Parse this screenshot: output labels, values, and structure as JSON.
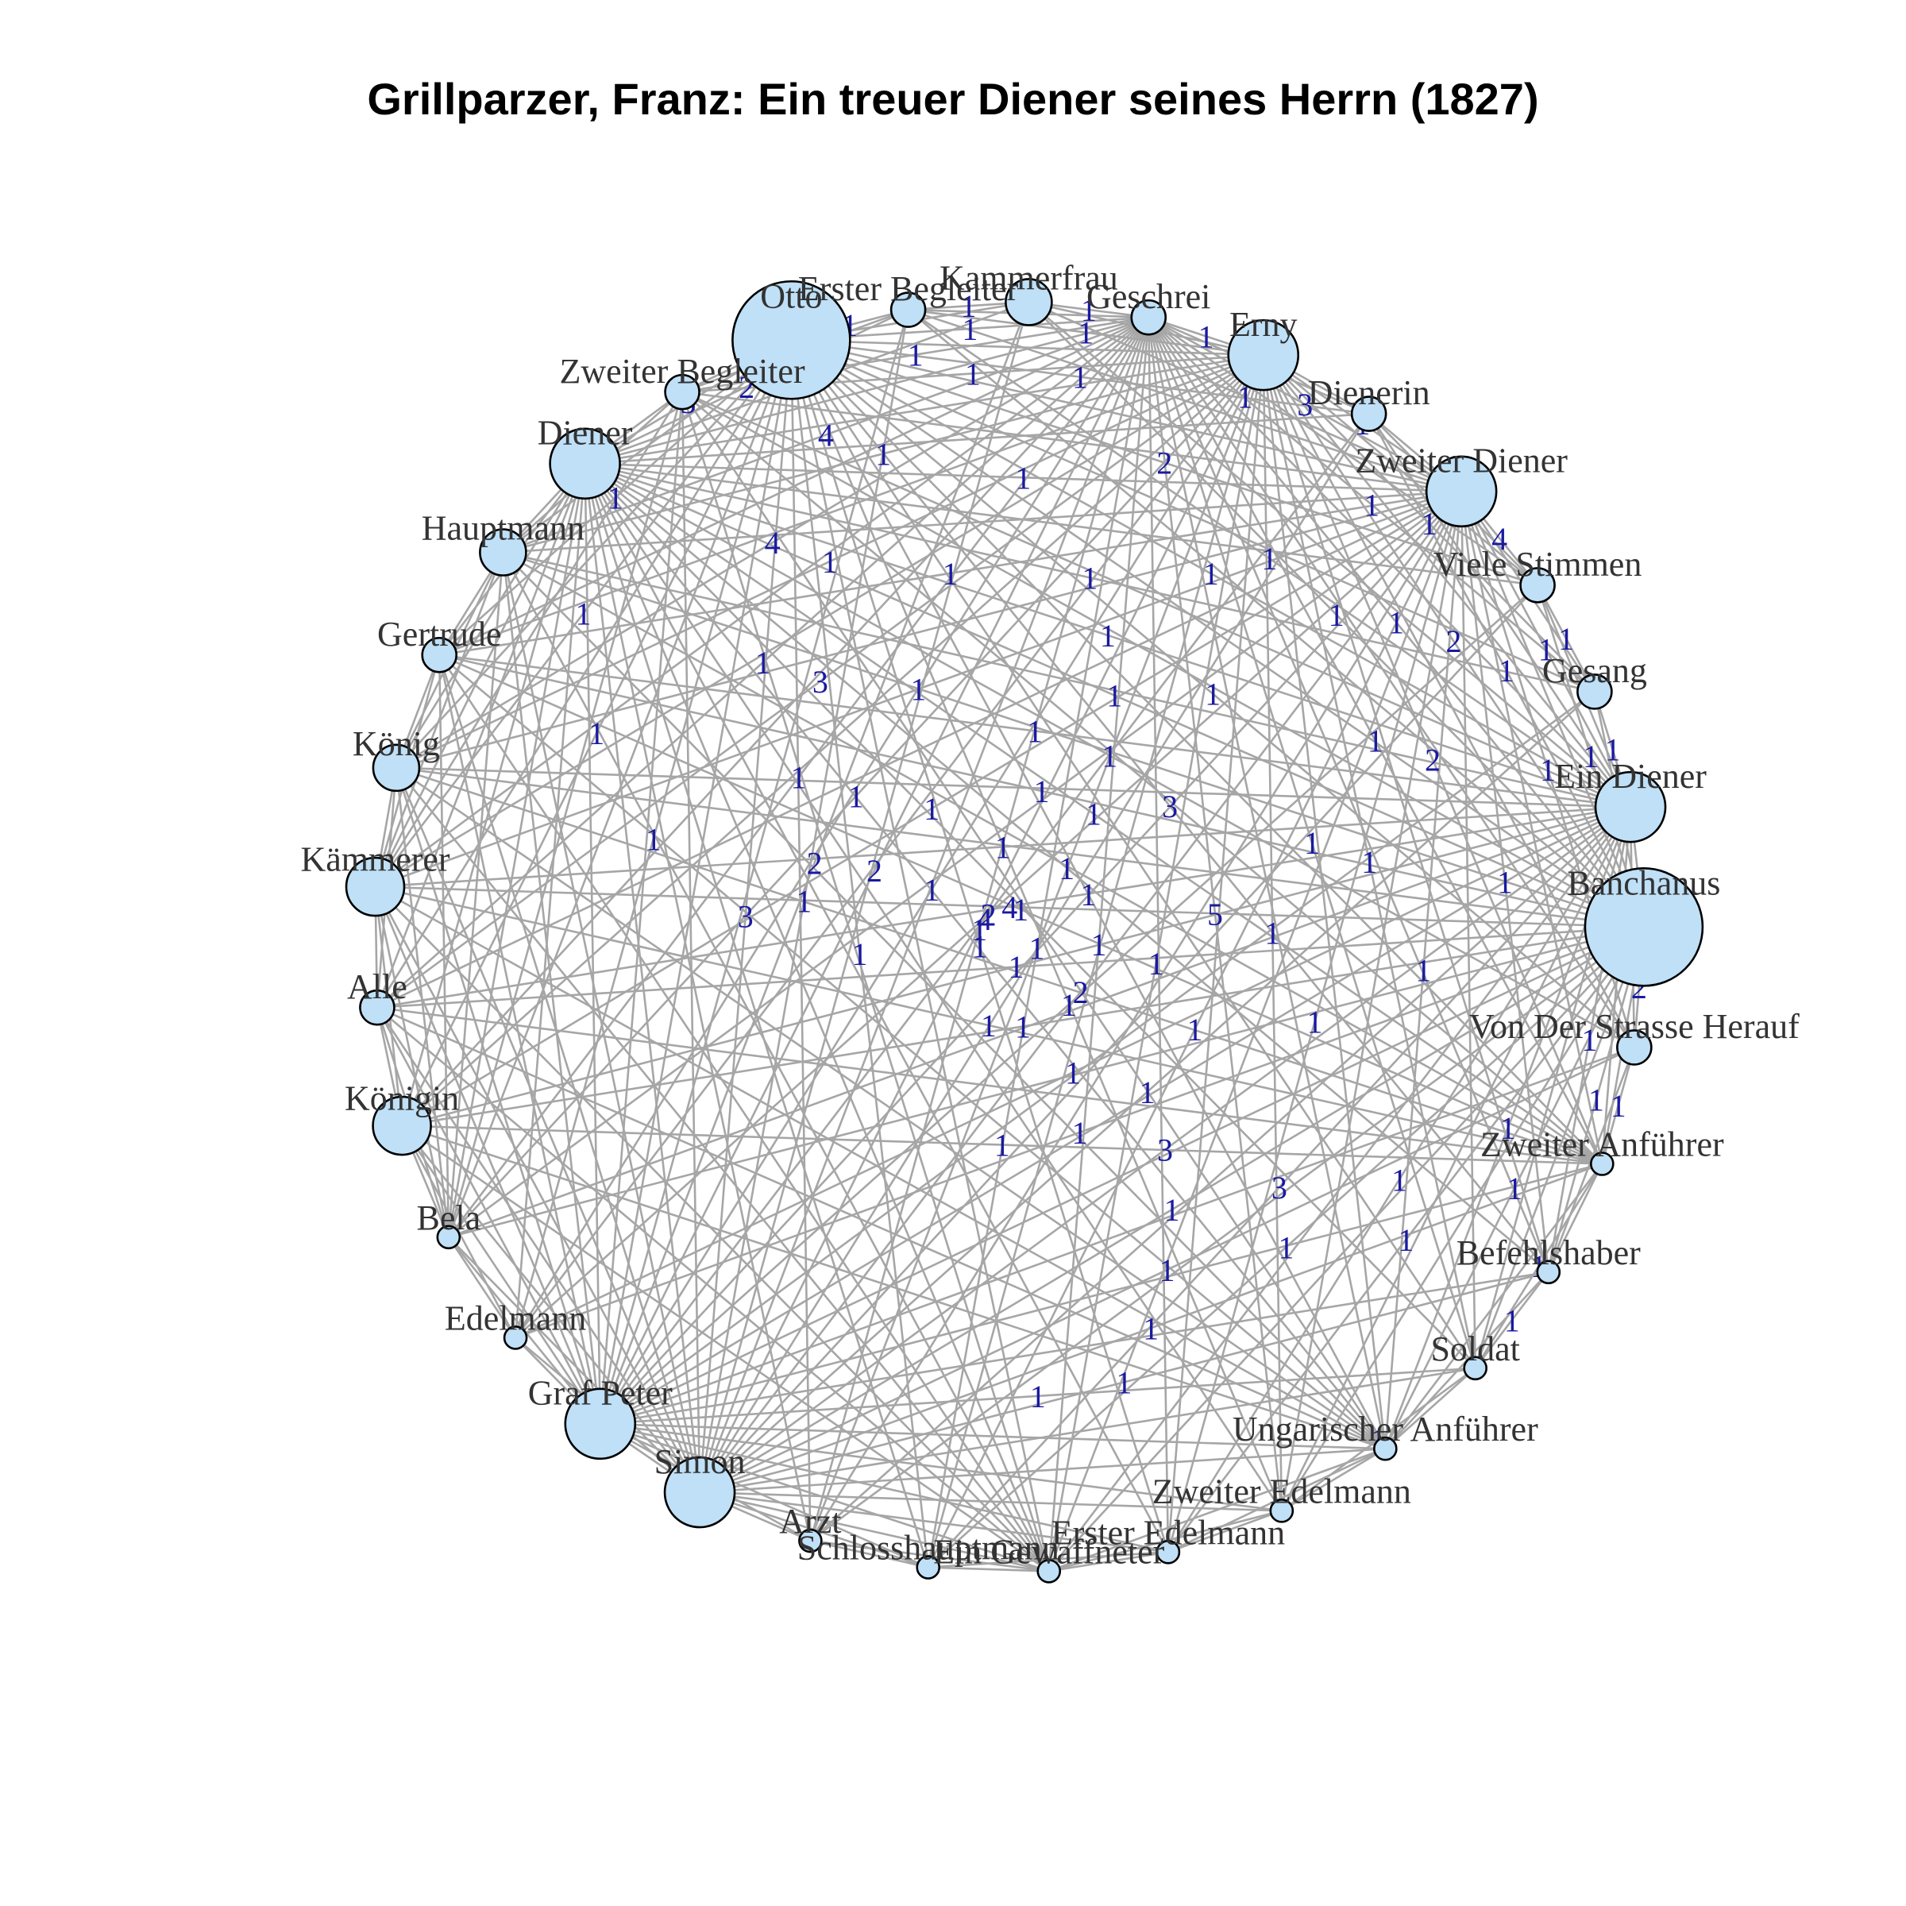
{
  "title": "Grillparzer, Franz: Ein treuer Diener seines Herrn (1827)",
  "colors": {
    "node_fill": "#bfe0f7",
    "edge": "#a6a6a6",
    "edge_label": "#1a1aa0",
    "node_label": "#333333"
  },
  "nodes": [
    {
      "name": "Otto",
      "weight": 8
    },
    {
      "name": "Erster Begleiter",
      "weight": 1
    },
    {
      "name": "Kammerfrau",
      "weight": 2
    },
    {
      "name": "Geschrei",
      "weight": 1
    },
    {
      "name": "Erny",
      "weight": 4
    },
    {
      "name": "Dienerin",
      "weight": 1
    },
    {
      "name": "Zweiter Diener",
      "weight": 4
    },
    {
      "name": "Viele Stimmen",
      "weight": 1
    },
    {
      "name": "Gesang",
      "weight": 1
    },
    {
      "name": "Ein Diener",
      "weight": 4
    },
    {
      "name": "Banchanus",
      "weight": 8
    },
    {
      "name": "Von Der Strasse Herauf",
      "weight": 1
    },
    {
      "name": "Zweiter Anführer",
      "weight": 0
    },
    {
      "name": "Befehlshaber",
      "weight": 0
    },
    {
      "name": "Soldat",
      "weight": 0
    },
    {
      "name": "Ungarischer Anführer",
      "weight": 0
    },
    {
      "name": "Zweiter Edelmann",
      "weight": 0
    },
    {
      "name": "Erster Edelmann",
      "weight": 0
    },
    {
      "name": "Ein Gewaffneter",
      "weight": 0
    },
    {
      "name": "Schlosshauptmann",
      "weight": 0
    },
    {
      "name": "Arzt",
      "weight": 0
    },
    {
      "name": "Simon",
      "weight": 4
    },
    {
      "name": "Graf Peter",
      "weight": 4
    },
    {
      "name": "Edelmann",
      "weight": 0
    },
    {
      "name": "Bela",
      "weight": 0
    },
    {
      "name": "Königin",
      "weight": 3
    },
    {
      "name": "Alle",
      "weight": 1
    },
    {
      "name": "Kämmerer",
      "weight": 3
    },
    {
      "name": "König",
      "weight": 2
    },
    {
      "name": "Gertrude",
      "weight": 1
    },
    {
      "name": "Hauptmann",
      "weight": 2
    },
    {
      "name": "Diener",
      "weight": 4
    },
    {
      "name": "Zweiter Begleiter",
      "weight": 1
    }
  ],
  "edge_labels": [
    "1",
    "1",
    "1",
    "2",
    "1",
    "1",
    "3",
    "1",
    "1",
    "1",
    "3",
    "1",
    "1",
    "1",
    "1",
    "3",
    "1",
    "1",
    "1",
    "1",
    "2",
    "1",
    "1",
    "1",
    "2",
    "1",
    "3",
    "1",
    "1",
    "1",
    "1",
    "5",
    "1",
    "1",
    "2",
    "1",
    "1",
    "4",
    "4",
    "1",
    "1",
    "1",
    "2",
    "2",
    "1",
    "1",
    "1",
    "1",
    "1",
    "1",
    "3",
    "1",
    "1",
    "1",
    "2",
    "1",
    "4",
    "4",
    "1",
    "1",
    "1",
    "1",
    "1",
    "1",
    "2",
    "2",
    "1",
    "1",
    "1",
    "1",
    "1",
    "1",
    "1",
    "1",
    "1",
    "1",
    "1",
    "1",
    "1",
    "1",
    "3",
    "3",
    "1",
    "1",
    "1",
    "1",
    "1",
    "2",
    "1",
    "1",
    "1",
    "1",
    "1",
    "1",
    "1",
    "4",
    "1",
    "1",
    "1",
    "1",
    "1",
    "1",
    "1",
    "1",
    "1",
    "1",
    "1",
    "1",
    "1",
    "1",
    "1",
    "1"
  ]
}
